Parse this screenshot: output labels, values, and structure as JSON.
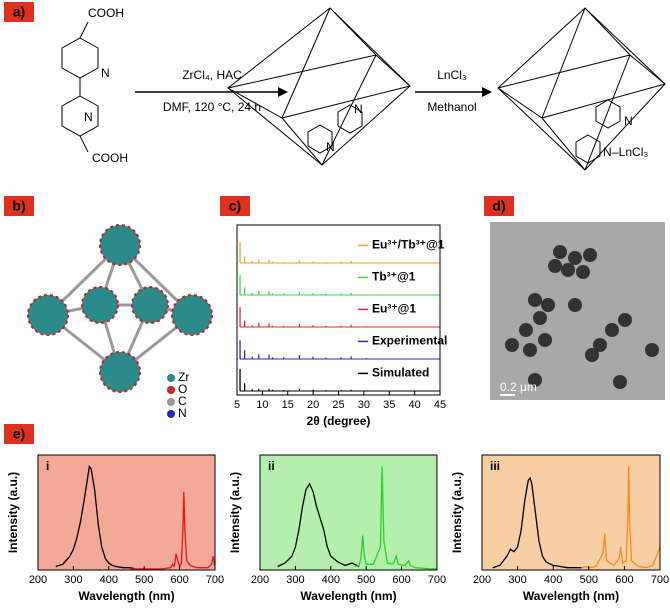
{
  "panel_labels": [
    "a)",
    "b)",
    "c)",
    "d)",
    "e)"
  ],
  "scheme": {
    "ligand_top": "COOH",
    "ligand_bottom": "COOH",
    "ligand_n1": "N",
    "ligand_n2": "N",
    "step1_reagent": "ZrCl₄, HAC",
    "step1_conditions": "DMF, 120 °C, 24 h",
    "step2_reagent": "LnCl₃",
    "step2_solvent": "Methanol",
    "product1_n1": "N",
    "product1_n2": "N",
    "product2_n1": "N",
    "product2_n2": "N",
    "product2_complex": "–LnCl₃"
  },
  "structure_legend": [
    "Zr",
    "O",
    "C",
    "N"
  ],
  "tem_scale": "0.2 μm",
  "chart_data": [
    {
      "type": "stick",
      "xlabel": "2θ (degree)",
      "xlim": [
        5,
        45
      ],
      "xticks": [
        5,
        10,
        15,
        20,
        25,
        30,
        35,
        40,
        45
      ],
      "ylim": [
        0,
        100
      ],
      "x": [
        5.6,
        6.5,
        8.0,
        9.3,
        11.3,
        12.0,
        14.2,
        17.3,
        20.0,
        22.5,
        25.5,
        27.5,
        30.5,
        33.5
      ],
      "series": [
        {
          "name": "Eu³⁺/Tb³⁺@1",
          "color": "#f39b34",
          "values": [
            95,
            30,
            8,
            16,
            14,
            6,
            5,
            12,
            7,
            4,
            6,
            9,
            3,
            2
          ]
        },
        {
          "name": "Tb³⁺@1",
          "color": "#3fd43f",
          "values": [
            90,
            35,
            10,
            18,
            16,
            7,
            6,
            14,
            8,
            5,
            6,
            10,
            3,
            3
          ]
        },
        {
          "name": "Eu³⁺@1",
          "color": "#e02a2a",
          "values": [
            90,
            30,
            8,
            18,
            16,
            6,
            6,
            14,
            8,
            5,
            6,
            10,
            3,
            2
          ]
        },
        {
          "name": "Experimental",
          "color": "#2a2ab8",
          "values": [
            85,
            40,
            10,
            22,
            20,
            8,
            8,
            18,
            10,
            6,
            8,
            12,
            4,
            3
          ]
        },
        {
          "name": "Simulated",
          "color": "#000000",
          "values": [
            100,
            35,
            8,
            10,
            10,
            6,
            5,
            10,
            6,
            4,
            4,
            6,
            3,
            2
          ]
        }
      ]
    },
    {
      "type": "line",
      "panel_label": "i",
      "background": "#f3a898",
      "xlabel": "Wavelength (nm)",
      "ylabel": "Intensity (a.u.)",
      "xlim": [
        200,
        700
      ],
      "xticks": [
        200,
        300,
        400,
        500,
        600,
        700
      ],
      "ylim": [
        0,
        100
      ],
      "series": [
        {
          "color": "#000000",
          "x": [
            250,
            270,
            290,
            300,
            310,
            320,
            330,
            340,
            345,
            350,
            360,
            370,
            380,
            390,
            400,
            410,
            420,
            440,
            460,
            475
          ],
          "values": [
            3,
            5,
            12,
            18,
            28,
            42,
            60,
            80,
            90,
            88,
            70,
            40,
            20,
            10,
            6,
            4,
            3,
            2,
            2,
            1
          ]
        },
        {
          "color": "#e8141c",
          "x": [
            460,
            500,
            550,
            575,
            580,
            585,
            590,
            595,
            600,
            605,
            610,
            612,
            615,
            620,
            630,
            650,
            680,
            690,
            695,
            699
          ],
          "values": [
            1,
            1,
            1,
            2,
            5,
            3,
            14,
            8,
            3,
            6,
            40,
            68,
            35,
            8,
            4,
            2,
            2,
            5,
            12,
            4
          ]
        }
      ]
    },
    {
      "type": "line",
      "panel_label": "ii",
      "background": "#b4efae",
      "xlabel": "Wavelength (nm)",
      "ylabel": "Intensity (a.u.)",
      "xlim": [
        200,
        700
      ],
      "xticks": [
        200,
        300,
        400,
        500,
        600,
        700
      ],
      "ylim": [
        0,
        100
      ],
      "series": [
        {
          "color": "#000000",
          "x": [
            250,
            270,
            290,
            300,
            310,
            320,
            330,
            340,
            350,
            360,
            370,
            380,
            390,
            400,
            420,
            440,
            460,
            480
          ],
          "values": [
            3,
            6,
            12,
            20,
            35,
            55,
            70,
            75,
            68,
            55,
            45,
            35,
            20,
            12,
            7,
            4,
            6,
            3
          ]
        },
        {
          "color": "#2ccf2c",
          "x": [
            470,
            480,
            485,
            490,
            495,
            500,
            520,
            540,
            545,
            550,
            560,
            575,
            580,
            585,
            590,
            610,
            620,
            625,
            640,
            680,
            700
          ],
          "values": [
            3,
            4,
            10,
            30,
            12,
            5,
            5,
            20,
            90,
            25,
            6,
            5,
            8,
            12,
            5,
            4,
            8,
            4,
            2,
            1,
            1
          ]
        }
      ]
    },
    {
      "type": "line",
      "panel_label": "iii",
      "background": "#f8cfa4",
      "xlabel": "Wavelength (nm)",
      "ylabel": "Intensity (a.u.)",
      "xlim": [
        200,
        700
      ],
      "xticks": [
        200,
        300,
        400,
        500,
        600,
        700
      ],
      "ylim": [
        0,
        100
      ],
      "series": [
        {
          "color": "#000000",
          "x": [
            230,
            250,
            270,
            280,
            290,
            300,
            310,
            320,
            330,
            335,
            340,
            350,
            360,
            370,
            380,
            400,
            420,
            440,
            460,
            480
          ],
          "values": [
            2,
            4,
            12,
            18,
            16,
            20,
            35,
            60,
            78,
            80,
            75,
            50,
            25,
            12,
            7,
            4,
            3,
            2,
            2,
            2
          ]
        },
        {
          "color": "#f28c1f",
          "x": [
            480,
            490,
            500,
            520,
            540,
            545,
            550,
            570,
            585,
            590,
            595,
            605,
            610,
            612,
            615,
            620,
            640,
            660,
            680,
            690,
            700
          ],
          "values": [
            2,
            3,
            2,
            3,
            15,
            32,
            8,
            4,
            10,
            20,
            6,
            8,
            50,
            90,
            40,
            8,
            3,
            2,
            4,
            12,
            20
          ]
        }
      ]
    }
  ]
}
